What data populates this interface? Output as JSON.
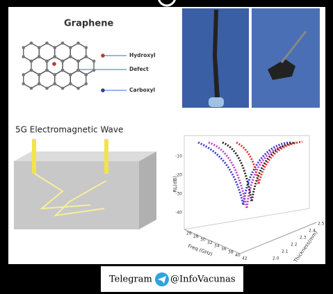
{
  "graphene": {
    "title": "Graphene",
    "labels": [
      "Hydroxyl",
      "Defect",
      "Carboxyl"
    ]
  },
  "wave": {
    "title": "5G Electromagnetic Wave"
  },
  "plot": {
    "y_label": "RL(dB)",
    "x_label": "Freq (GHz)",
    "z_label": "Thickness(mm)",
    "y_ticks": [
      "-10",
      "-20",
      "-30",
      "-40"
    ],
    "x_ticks": [
      "26",
      "28",
      "30",
      "32",
      "34",
      "36",
      "38",
      "40",
      "42"
    ],
    "z_ticks": [
      "2.0",
      "2.1",
      "2.2",
      "2.3",
      "2.4",
      "2.5"
    ]
  },
  "footer": {
    "app": "Telegram",
    "handle": "@InfoVacunas"
  }
}
